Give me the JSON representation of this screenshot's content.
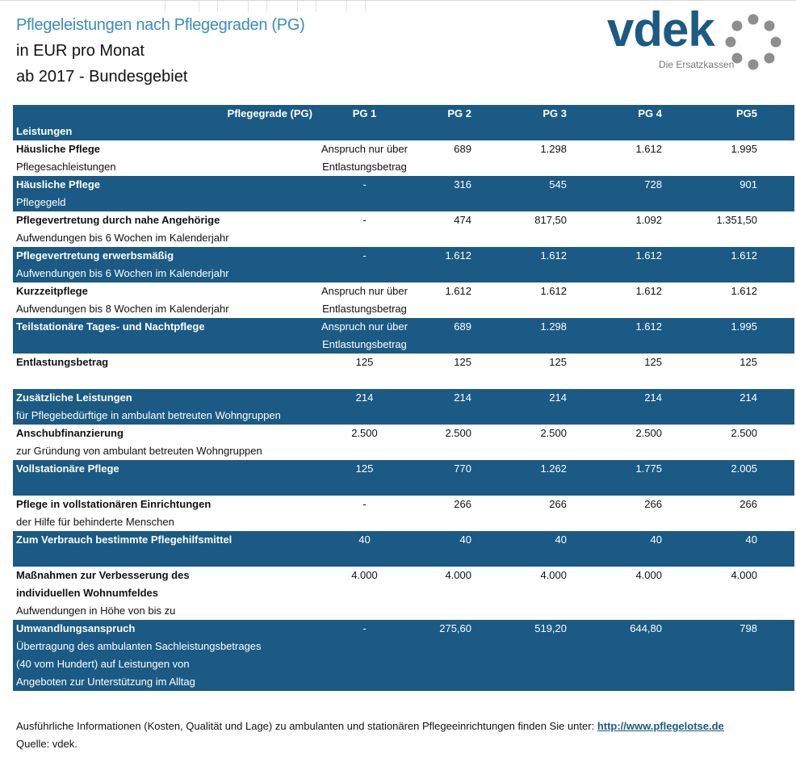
{
  "title": "Pflegeleistungen nach Pflegegraden (PG)",
  "subtitle1": "in EUR pro Monat",
  "subtitle2": "ab 2017 - Bundesgebiet",
  "logo": {
    "word": "vdek",
    "tagline": "Die Ersatzkassen"
  },
  "colors": {
    "accent": "#1b5a84",
    "title": "#3a8cc0"
  },
  "header": {
    "corner": "Pflegegrade (PG)",
    "rowlabel": "Leistungen",
    "columns": [
      "PG 1",
      "PG 2",
      "PG 3",
      "PG 4",
      "PG5"
    ]
  },
  "rows": [
    {
      "title": "Häusliche Pflege",
      "bold": true,
      "sub": [
        "Pflegesachleistungen"
      ],
      "values": [
        "Anspruch nur über\nEntlastungsbetrag",
        "689",
        "1.298",
        "1.612",
        "1.995"
      ]
    },
    {
      "title": "Häusliche Pflege",
      "bold": true,
      "sub": [
        "Pflegegeld"
      ],
      "values": [
        "-",
        "316",
        "545",
        "728",
        "901"
      ]
    },
    {
      "title": "Pflegevertretung durch nahe Angehörige",
      "bold": true,
      "sub": [
        "Aufwendungen bis 6 Wochen im Kalenderjahr"
      ],
      "values": [
        "-",
        "474",
        "817,50",
        "1.092",
        "1.351,50"
      ]
    },
    {
      "title": "Pflegevertretung erwerbsmäßig",
      "bold": true,
      "sub": [
        "Aufwendungen bis 6 Wochen im Kalenderjahr"
      ],
      "values": [
        "-",
        "1.612",
        "1.612",
        "1.612",
        "1.612"
      ]
    },
    {
      "title": "Kurzzeitpflege",
      "bold": true,
      "sub": [
        "Aufwendungen bis 8 Wochen im Kalenderjahr"
      ],
      "values": [
        "Anspruch nur über\nEntlastungsbetrag",
        "1.612",
        "1.612",
        "1.612",
        "1.612"
      ]
    },
    {
      "title": "Teilstationäre Tages- und Nachtpflege",
      "bold": true,
      "sub": [],
      "values": [
        "Anspruch nur über\nEntlastungsbetrag",
        "689",
        "1.298",
        "1.612",
        "1.995"
      ]
    },
    {
      "title": "Entlastungsbetrag",
      "bold": true,
      "sub": [],
      "values": [
        "125",
        "125",
        "125",
        "125",
        "125"
      ]
    },
    {
      "title": "Zusätzliche Leistungen",
      "bold": true,
      "sub": [
        "für Pflegebedürftige in ambulant betreuten Wohngruppen"
      ],
      "values": [
        "214",
        "214",
        "214",
        "214",
        "214"
      ]
    },
    {
      "title": "Anschubfinanzierung",
      "bold": true,
      "sub": [
        "zur Gründung von ambulant betreuten Wohngruppen"
      ],
      "values": [
        "2.500",
        "2.500",
        "2.500",
        "2.500",
        "2.500"
      ]
    },
    {
      "title": "Vollstationäre Pflege",
      "bold": true,
      "sub": [],
      "values": [
        "125",
        "770",
        "1.262",
        "1.775",
        "2.005"
      ]
    },
    {
      "title": "Pflege in vollstationären Einrichtungen",
      "bold": true,
      "sub": [
        "der Hilfe für behinderte Menschen"
      ],
      "values": [
        "-",
        "266",
        "266",
        "266",
        "266"
      ]
    },
    {
      "title": "Zum Verbrauch bestimmte Pflegehilfsmittel",
      "bold": true,
      "sub": [],
      "values": [
        "40",
        "40",
        "40",
        "40",
        "40"
      ]
    },
    {
      "title": "Maßnahmen zur Verbesserung des\nindividuellen Wohnumfeldes",
      "bold": true,
      "sub": [
        "Aufwendungen in Höhe von bis zu"
      ],
      "values": [
        "4.000",
        "4.000",
        "4.000",
        "4.000",
        "4.000"
      ]
    },
    {
      "title": "Umwandlungsanspruch",
      "bold": true,
      "sub": [
        "Übertragung des ambulanten Sachleistungsbetrages",
        "(40 vom Hundert) auf Leistungen von",
        "Angeboten zur Unterstützung im Alltag"
      ],
      "values": [
        "-",
        "275,60",
        "519,20",
        "644,80",
        "798"
      ]
    }
  ],
  "footer": {
    "text": "Ausführliche Informationen (Kosten, Qualität und Lage) zu ambulanten und stationären Pflegeeinrichtungen finden Sie unter: ",
    "link": "http://www.pflegelotse.de",
    "source": "Quelle: vdek."
  }
}
